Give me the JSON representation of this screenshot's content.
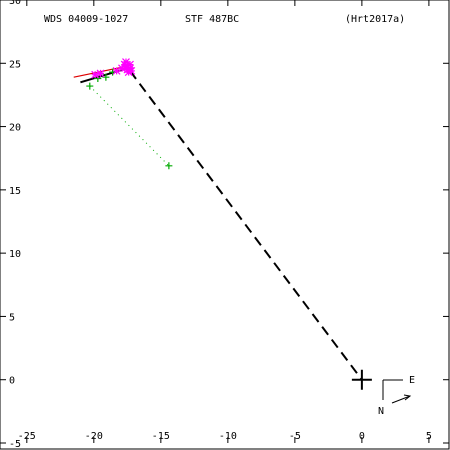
{
  "header": {
    "wds_id": "WDS 04009-1027",
    "discoverer": "STF 487BC",
    "reference": "(Hrt2017a)"
  },
  "compass": {
    "north": "N",
    "east": "E"
  },
  "chart_data": {
    "type": "scatter",
    "title": "",
    "xlim": [
      -27,
      6.5
    ],
    "ylim": [
      -5,
      30
    ],
    "x_ticks": [
      -25,
      -20,
      -15,
      -10,
      -5,
      0,
      5
    ],
    "y_ticks": [
      -5,
      0,
      5,
      10,
      15,
      20,
      25,
      30
    ],
    "x_tick_labels": [
      "-25",
      "-20",
      "-15",
      "-10",
      "-5",
      "0",
      "5"
    ],
    "y_tick_labels": [
      "-5",
      "0",
      "5",
      "10",
      "15",
      "20",
      "25",
      "30"
    ],
    "grid": false,
    "colors": {
      "observations_green": "#00aa00",
      "observations_magenta": "#ff00ff",
      "orbit_red": "#dd0000",
      "orbit_black": "#000000"
    },
    "primary": {
      "x": 0,
      "y": 0
    },
    "green_observations": [
      {
        "x": -20.3,
        "y": 23.2
      },
      {
        "x": -19.7,
        "y": 23.8
      },
      {
        "x": -19.1,
        "y": 23.9
      },
      {
        "x": -18.6,
        "y": 24.3
      },
      {
        "x": -14.4,
        "y": 16.9
      }
    ],
    "magenta_observations": [
      {
        "x": -19.9,
        "y": 24.1
      },
      {
        "x": -19.5,
        "y": 24.2
      },
      {
        "x": -18.3,
        "y": 24.4
      },
      {
        "x": -17.9,
        "y": 24.6
      },
      {
        "x": -17.7,
        "y": 24.9
      },
      {
        "x": -17.6,
        "y": 24.7
      },
      {
        "x": -17.5,
        "y": 24.5
      },
      {
        "x": -17.4,
        "y": 24.3
      },
      {
        "x": -17.3,
        "y": 24.6
      },
      {
        "x": -17.2,
        "y": 24.4
      },
      {
        "x": -17.6,
        "y": 25.1
      },
      {
        "x": -17.3,
        "y": 24.9
      }
    ],
    "red_orbit_segment": {
      "x1": -21.5,
      "y1": 23.9,
      "x2": -17.4,
      "y2": 24.8
    },
    "black_orbit_segment": {
      "x1": -21.0,
      "y1": 23.5,
      "x2": -17.5,
      "y2": 24.6
    },
    "dashed_line": {
      "x1": -17.3,
      "y1": 24.4,
      "x2": 0,
      "y2": 0
    },
    "dotted_line": {
      "x1": -20.3,
      "y1": 23.2,
      "x2": -14.4,
      "y2": 16.9
    }
  }
}
